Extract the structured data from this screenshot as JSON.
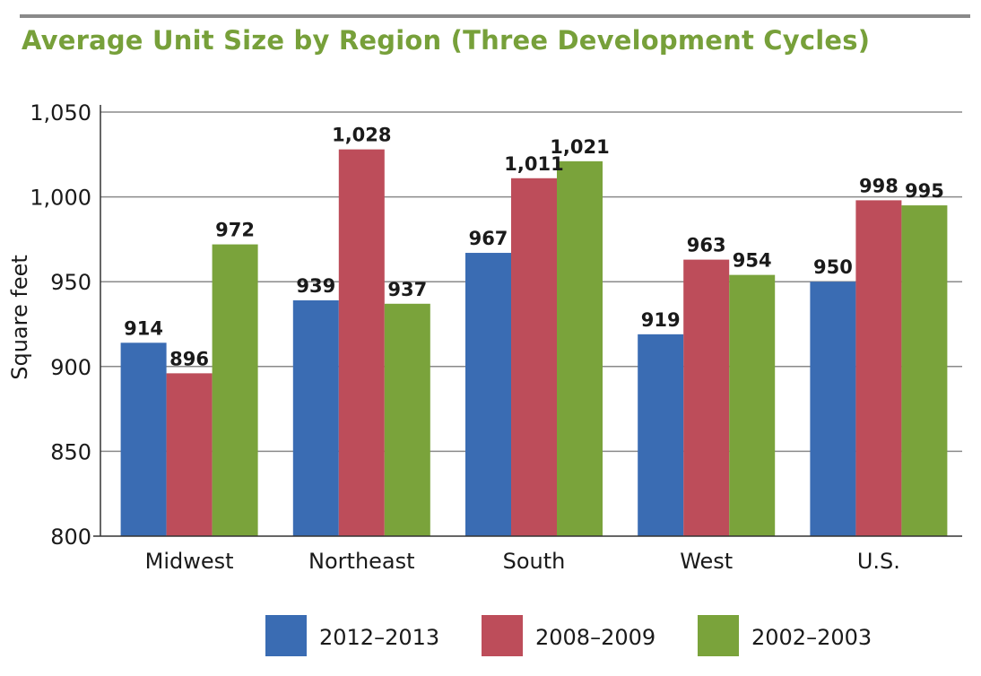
{
  "chart_data": {
    "type": "bar",
    "title": "Average Unit Size by Region (Three Development Cycles)",
    "ylabel": "Square feet",
    "xlabel": "",
    "ylim": [
      800,
      1050
    ],
    "yticks": [
      800,
      850,
      900,
      950,
      1000,
      1050
    ],
    "ytick_labels": [
      "800",
      "850",
      "900",
      "950",
      "1,000",
      "1,050"
    ],
    "grid": true,
    "legend_position": "bottom",
    "categories": [
      "Midwest",
      "Northeast",
      "South",
      "West",
      "U.S."
    ],
    "series": [
      {
        "name": "2012–2013",
        "color": "#3a6cb3",
        "values": [
          914,
          939,
          967,
          919,
          950
        ],
        "labels": [
          "914",
          "939",
          "967",
          "919",
          "950"
        ]
      },
      {
        "name": "2008–2009",
        "color": "#bd4d5a",
        "values": [
          896,
          1028,
          1011,
          963,
          998
        ],
        "labels": [
          "896",
          "1,028",
          "1,011",
          "963",
          "998"
        ]
      },
      {
        "name": "2002–2003",
        "color": "#7aa33b",
        "values": [
          972,
          937,
          1021,
          954,
          995
        ],
        "labels": [
          "972",
          "937",
          "1,021",
          "954",
          "995"
        ]
      }
    ]
  }
}
